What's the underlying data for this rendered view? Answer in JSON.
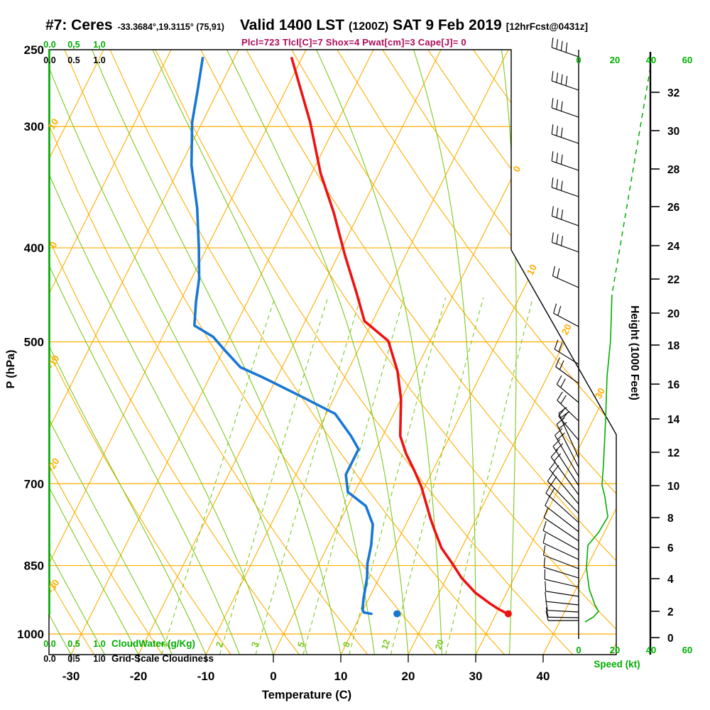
{
  "header": {
    "station": "#7: Ceres",
    "coords": "-33.3684°,19.3115° (75,91)",
    "valid": "Valid 1400 LST",
    "valid_z": "(1200Z)",
    "valid_date": "SAT 9 Feb 2019",
    "forecast": "[12hrFcst@0431z]",
    "params": "Plcl=723 Tlcl[C]=7 Shox=4 Pwat[cm]=3 Cape[J]= 0"
  },
  "colors": {
    "orange": "#FFAE00",
    "grid_green": "#7CC81E",
    "bright_green": "#00AD00",
    "temperature_red": "#EE1111",
    "dewpoint_blue": "#1777D4",
    "params_magenta": "#AD0A5A",
    "black": "#000000"
  },
  "chart_data": {
    "type": "skew-t-log-p-sounding",
    "pressure_axis": {
      "label": "P (hPa)",
      "ticks": [
        250,
        300,
        400,
        500,
        700,
        850,
        1000
      ]
    },
    "temperature_axis": {
      "label": "Temperature (C)",
      "ticks": [
        -30,
        -20,
        -10,
        0,
        10,
        20,
        30,
        40
      ]
    },
    "height_axis": {
      "label": "Height (1000 Feet)",
      "ticks": [
        [
          0,
          898
        ],
        [
          2,
          861
        ],
        [
          4,
          815
        ],
        [
          6,
          771
        ],
        [
          8,
          729
        ],
        [
          10,
          684
        ],
        [
          12,
          637
        ],
        [
          14,
          590
        ],
        [
          16,
          541
        ],
        [
          18,
          486
        ],
        [
          20,
          441
        ],
        [
          22,
          393
        ],
        [
          24,
          346
        ],
        [
          26,
          291
        ],
        [
          28,
          238
        ],
        [
          30,
          184
        ],
        [
          32,
          130
        ]
      ]
    },
    "speed_axis": {
      "label": "Speed (kt)",
      "ticks": [
        0,
        20,
        40,
        60
      ]
    },
    "cloud_axes": {
      "ticks": [
        "0.0",
        "0.5",
        "1.0"
      ],
      "green_label": "CloudWater (g/Kg)",
      "black_label": "Grid-Scale Cloudiness"
    },
    "grid": {
      "isobars_hpa": [
        300,
        400,
        500,
        700,
        850,
        1000
      ],
      "isotherms_c": {
        "min": -120,
        "max": 50,
        "step": 10
      },
      "dry_adiabats_c": {
        "min": -40,
        "max": 150,
        "step": 10
      },
      "moist_adiabats_c": {
        "min": -60,
        "max": 35,
        "step": 5
      },
      "mixing_ratio_gkg": [
        1,
        2,
        3,
        5,
        8,
        12,
        20
      ]
    },
    "isotherm_edge_labels": [
      [
        0,
        732,
        240
      ],
      [
        10,
        753,
        382
      ],
      [
        20,
        802,
        466
      ],
      [
        30,
        849,
        556
      ]
    ],
    "dry_adiabat_edge_labels": [
      [
        10,
        177
      ],
      [
        0,
        347
      ],
      [
        -10,
        512
      ],
      [
        -20,
        657
      ],
      [
        -30,
        828
      ]
    ],
    "mixing_ratio_labels": [
      [
        1,
        235
      ],
      [
        2,
        313
      ],
      [
        3,
        363
      ],
      [
        5,
        428
      ],
      [
        8,
        492
      ],
      [
        12,
        547
      ],
      [
        20,
        623
      ]
    ],
    "temperature_trace_p_t": [
      [
        255,
        -41.5
      ],
      [
        297,
        -34.0
      ],
      [
        335,
        -28.7
      ],
      [
        368,
        -23.8
      ],
      [
        407,
        -19.0
      ],
      [
        445,
        -14.5
      ],
      [
        476,
        -11.2
      ],
      [
        499,
        -6.2
      ],
      [
        536,
        -2.6
      ],
      [
        573,
        0.0
      ],
      [
        625,
        2.6
      ],
      [
        652,
        4.8
      ],
      [
        679,
        7.3
      ],
      [
        705,
        9.5
      ],
      [
        760,
        13.2
      ],
      [
        779,
        14.5
      ],
      [
        815,
        17.0
      ],
      [
        845,
        19.7
      ],
      [
        875,
        22.2
      ],
      [
        907,
        25.4
      ],
      [
        930,
        28.3
      ],
      [
        941,
        29.8
      ],
      [
        950,
        31.2
      ]
    ],
    "dewpoint_trace_p_t": [
      [
        255,
        -54.7
      ],
      [
        276,
        -53.0
      ],
      [
        297,
        -51.5
      ],
      [
        329,
        -48.4
      ],
      [
        364,
        -44.4
      ],
      [
        400,
        -41.2
      ],
      [
        430,
        -38.9
      ],
      [
        455,
        -37.6
      ],
      [
        481,
        -36.1
      ],
      [
        494,
        -32.5
      ],
      [
        511,
        -29.6
      ],
      [
        531,
        -26.2
      ],
      [
        544,
        -22.1
      ],
      [
        571,
        -14.5
      ],
      [
        593,
        -8.7
      ],
      [
        625,
        -4.7
      ],
      [
        645,
        -2.6
      ],
      [
        685,
        -2.6
      ],
      [
        714,
        -1.0
      ],
      [
        738,
        2.7
      ],
      [
        771,
        5.1
      ],
      [
        810,
        6.4
      ],
      [
        846,
        7.2
      ],
      [
        875,
        8.2
      ],
      [
        919,
        9.2
      ],
      [
        944,
        9.9
      ],
      [
        950,
        10.3
      ],
      [
        953,
        11.5
      ]
    ],
    "surface_dots": {
      "temperature": [
        953,
        31.8
      ],
      "dewpoint": [
        953,
        15.3
      ]
    },
    "cloudwater_profile": {
      "constant_value_gkg": 0.0
    },
    "wind_barbs": [
      [
        80,
        19,
        4,
        40
      ],
      [
        127,
        19,
        4,
        40
      ],
      [
        165,
        19,
        3,
        40
      ],
      [
        202,
        19,
        3,
        40
      ],
      [
        240,
        19,
        3,
        40
      ],
      [
        277,
        19,
        3,
        40
      ],
      [
        318,
        20,
        3,
        40
      ],
      [
        355,
        20,
        3,
        40
      ],
      [
        405,
        24,
        2,
        40
      ],
      [
        460,
        28,
        2,
        40
      ],
      [
        513,
        32,
        2,
        40
      ],
      [
        540,
        36,
        2,
        40
      ],
      [
        567,
        40,
        2,
        40
      ],
      [
        593,
        44,
        2,
        42
      ],
      [
        620,
        50,
        2,
        44
      ],
      [
        645,
        66,
        2,
        69
      ],
      [
        658,
        63,
        2,
        68
      ],
      [
        671,
        60,
        2,
        67
      ],
      [
        684,
        57,
        2,
        66
      ],
      [
        697,
        54,
        2,
        66
      ],
      [
        710,
        50,
        2,
        64
      ],
      [
        723,
        46,
        2,
        63
      ],
      [
        736,
        42,
        2,
        62
      ],
      [
        749,
        38,
        1,
        60
      ],
      [
        762,
        34,
        1,
        59
      ],
      [
        775,
        29,
        1,
        57
      ],
      [
        788,
        25,
        1,
        55
      ],
      [
        801,
        21,
        1,
        53
      ],
      [
        814,
        17,
        1,
        51
      ],
      [
        827,
        13,
        1,
        49
      ],
      [
        840,
        9,
        1,
        47
      ],
      [
        852,
        6,
        1,
        46
      ],
      [
        862,
        3,
        1,
        44
      ],
      [
        870,
        1,
        1,
        43
      ],
      [
        874,
        0,
        1,
        43
      ]
    ],
    "speed_profile_dashed_y_kt": [
      [
        95,
        39.6
      ],
      [
        415,
        18.4
      ]
    ],
    "speed_profile_y_kt": [
      [
        415,
        18.4
      ],
      [
        480,
        17.6
      ],
      [
        530,
        15.7
      ],
      [
        590,
        14.9
      ],
      [
        655,
        13.7
      ],
      [
        683,
        12.9
      ],
      [
        700,
        14.5
      ],
      [
        728,
        16.1
      ],
      [
        750,
        11.0
      ],
      [
        768,
        5.1
      ],
      [
        800,
        4.3
      ],
      [
        830,
        5.9
      ],
      [
        852,
        9.0
      ],
      [
        861,
        11.0
      ],
      [
        869,
        8.2
      ],
      [
        876,
        3.5
      ]
    ]
  }
}
